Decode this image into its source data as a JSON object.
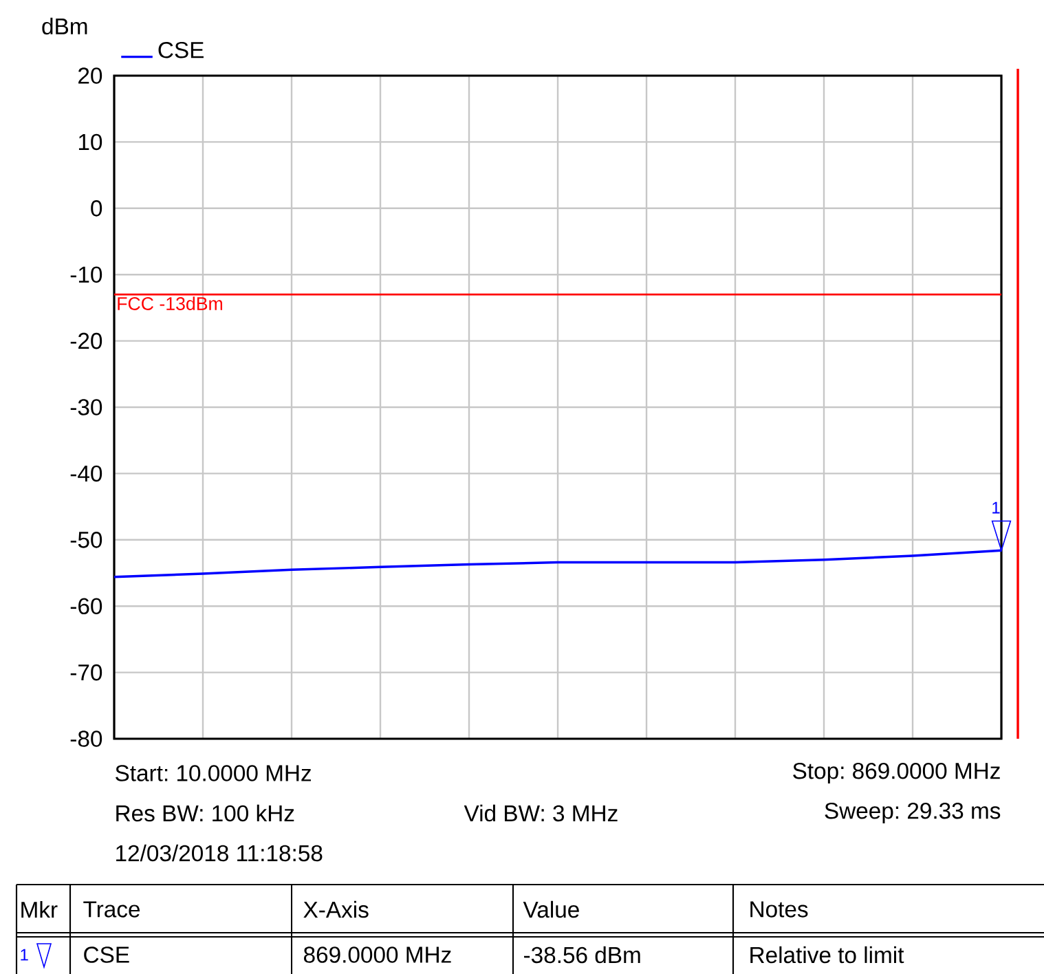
{
  "chart_data": {
    "type": "line",
    "ylabel": "dBm",
    "categories": [
      null,
      null,
      null,
      null,
      null,
      null,
      null,
      null,
      null,
      null,
      null
    ],
    "series": [
      {
        "name": "CSE",
        "color": "#0000ff",
        "values": [
          -55.6,
          -55.1,
          -54.5,
          -54.1,
          -53.7,
          -53.4,
          -53.4,
          -53.4,
          -53.0,
          -52.4,
          -51.6
        ]
      }
    ],
    "ylim": [
      -80,
      20
    ],
    "yticks": [
      -80,
      -70,
      -60,
      -50,
      -40,
      -30,
      -20,
      -10,
      0,
      10,
      20
    ],
    "tick_labels": "y",
    "grid": true,
    "legend": "top left",
    "marker": "none",
    "line_style": "solid",
    "ref_lines": [
      {
        "axis": "y",
        "value": -13,
        "label": "FCC -13dBm",
        "color": "#ff0000"
      }
    ],
    "annotations": [
      "Start: 10.0000 MHz",
      "Stop: 869.0000 MHz",
      "Res BW: 100 kHz",
      "Vid BW: 3 MHz",
      "Sweep: 29.33 ms",
      "12/03/2018 11:18:58",
      "Mkr",
      "Trace",
      "X-Axis",
      "Value",
      "Notes",
      "1",
      "CSE",
      "869.0000 MHz",
      "-38.56 dBm",
      "Relative to limit",
      {
        "text": "1",
        "y": -51.6
      }
    ]
  }
}
